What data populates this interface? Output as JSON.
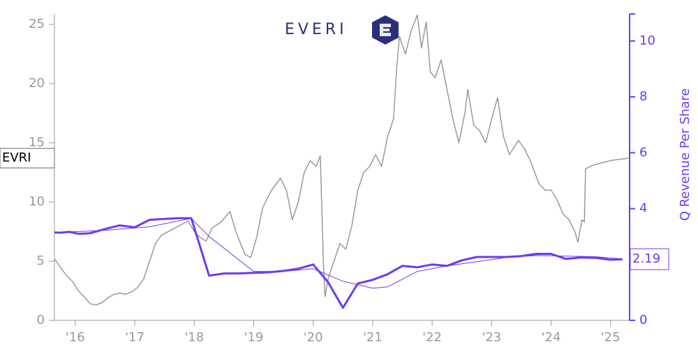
{
  "chart_data": {
    "type": "line",
    "brand": "EVERI",
    "price_label": "EVRI",
    "end_label": "2.19",
    "y2_label": "Q Revenue Per Share",
    "xlim": [
      2015.65,
      2025.32
    ],
    "xticks": [
      {
        "value": 2016,
        "label": "'16"
      },
      {
        "value": 2017,
        "label": "'17"
      },
      {
        "value": 2018,
        "label": "'18"
      },
      {
        "value": 2019,
        "label": "'19"
      },
      {
        "value": 2020,
        "label": "'20"
      },
      {
        "value": 2021,
        "label": "'21"
      },
      {
        "value": 2022,
        "label": "'22"
      },
      {
        "value": 2023,
        "label": "'23"
      },
      {
        "value": 2024,
        "label": "'24"
      },
      {
        "value": 2025,
        "label": "'25"
      }
    ],
    "ylim": [
      0,
      25.88
    ],
    "yticks": [
      0,
      5,
      10,
      15,
      20,
      25
    ],
    "y2lim": [
      0,
      10.97
    ],
    "y2ticks": [
      0,
      2,
      4,
      6,
      8,
      10
    ],
    "left_axis_color": "#999999",
    "right_axis_color": "#6a3cf0",
    "series": [
      {
        "color": "#999999",
        "axis": "y",
        "line_width": 1.5,
        "x": [
          2015.65,
          2015.75,
          2015.85,
          2015.95,
          2016.05,
          2016.15,
          2016.25,
          2016.35,
          2016.45,
          2016.55,
          2016.65,
          2016.75,
          2016.85,
          2016.95,
          2017.05,
          2017.15,
          2017.25,
          2017.35,
          2017.45,
          2017.6,
          2017.75,
          2017.9,
          2018.0,
          2018.1,
          2018.2,
          2018.3,
          2018.45,
          2018.6,
          2018.7,
          2018.85,
          2018.95,
          2019.05,
          2019.15,
          2019.3,
          2019.45,
          2019.55,
          2019.65,
          2019.75,
          2019.85,
          2019.95,
          2020.05,
          2020.12,
          2020.17,
          2020.2,
          2020.25,
          2020.35,
          2020.45,
          2020.55,
          2020.65,
          2020.75,
          2020.85,
          2020.95,
          2021.05,
          2021.15,
          2021.25,
          2021.35,
          2021.4,
          2021.45,
          2021.55,
          2021.65,
          2021.75,
          2021.82,
          2021.9,
          2021.97,
          2022.05,
          2022.15,
          2022.25,
          2022.35,
          2022.45,
          2022.55,
          2022.6,
          2022.7,
          2022.8,
          2022.9,
          2023.0,
          2023.1,
          2023.2,
          2023.3,
          2023.45,
          2023.55,
          2023.65,
          2023.8,
          2023.9,
          2024.0,
          2024.1,
          2024.2,
          2024.3,
          2024.4,
          2024.45,
          2024.52,
          2024.56,
          2024.58,
          2024.7,
          2024.85,
          2025.0,
          2025.15,
          2025.3
        ],
        "values": [
          5.2,
          4.5,
          3.8,
          3.3,
          2.5,
          2.0,
          1.4,
          1.3,
          1.5,
          1.9,
          2.2,
          2.3,
          2.2,
          2.4,
          2.8,
          3.5,
          5.0,
          6.5,
          7.2,
          7.6,
          8.0,
          8.4,
          7.5,
          7.0,
          6.7,
          7.8,
          8.3,
          9.2,
          7.5,
          5.6,
          5.3,
          7.0,
          9.5,
          11.0,
          12.0,
          11.0,
          8.5,
          10.0,
          12.5,
          13.5,
          13.0,
          13.9,
          5.0,
          2.0,
          3.5,
          5.0,
          6.5,
          6.0,
          8.0,
          11.0,
          12.5,
          13.0,
          14.0,
          13.0,
          15.5,
          17.0,
          21.0,
          24.0,
          22.5,
          24.5,
          25.8,
          23.0,
          25.2,
          21.0,
          20.5,
          22.0,
          19.5,
          17.0,
          15.0,
          17.5,
          19.5,
          16.5,
          16.0,
          15.0,
          17.0,
          18.8,
          15.5,
          14.0,
          15.2,
          14.5,
          13.5,
          11.5,
          11.0,
          11.0,
          10.2,
          9.0,
          8.5,
          7.5,
          6.6,
          8.5,
          8.3,
          12.8,
          13.1,
          13.3,
          13.5,
          13.6,
          13.7
        ]
      },
      {
        "color": "#6a3cf0",
        "axis": "y2",
        "line_width": 1,
        "x": [
          2015.65,
          2016.5,
          2017.25,
          2017.95,
          2018.25,
          2019.0,
          2019.5,
          2020.0,
          2020.5,
          2021.0,
          2021.25,
          2021.75,
          2022.25,
          2022.75,
          2023.25,
          2023.75,
          2024.25,
          2024.75,
          2025.2
        ],
        "values": [
          3.15,
          3.22,
          3.35,
          3.65,
          3.0,
          1.75,
          1.75,
          1.85,
          1.4,
          1.15,
          1.2,
          1.75,
          1.95,
          2.1,
          2.25,
          2.32,
          2.3,
          2.28,
          2.2
        ]
      },
      {
        "color": "#6a3cf0",
        "axis": "y2",
        "line_width": 3,
        "x": [
          2015.65,
          2015.75,
          2015.9,
          2016.05,
          2016.25,
          2016.5,
          2016.75,
          2017.0,
          2017.25,
          2017.5,
          2017.75,
          2017.95,
          2018.25,
          2018.5,
          2018.75,
          2019.0,
          2019.25,
          2019.5,
          2019.75,
          2020.0,
          2020.25,
          2020.5,
          2020.75,
          2021.0,
          2021.25,
          2021.5,
          2021.75,
          2022.0,
          2022.25,
          2022.5,
          2022.75,
          2023.0,
          2023.25,
          2023.5,
          2023.75,
          2024.0,
          2024.25,
          2024.5,
          2024.75,
          2025.0,
          2025.2
        ],
        "values": [
          3.15,
          3.14,
          3.17,
          3.1,
          3.12,
          3.27,
          3.4,
          3.33,
          3.6,
          3.63,
          3.66,
          3.66,
          1.6,
          1.68,
          1.68,
          1.7,
          1.72,
          1.77,
          1.85,
          2.0,
          1.37,
          0.45,
          1.32,
          1.45,
          1.65,
          1.95,
          1.9,
          2.0,
          1.95,
          2.15,
          2.27,
          2.27,
          2.27,
          2.3,
          2.38,
          2.38,
          2.2,
          2.25,
          2.24,
          2.17,
          2.19
        ]
      }
    ]
  }
}
